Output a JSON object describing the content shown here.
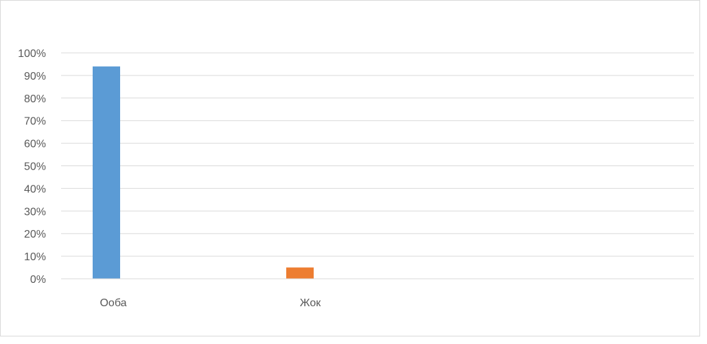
{
  "chart_data": {
    "type": "bar",
    "categories": [
      "Ооба",
      "Жок"
    ],
    "values": [
      94,
      5
    ],
    "colors": [
      "#5b9bd5",
      "#ed7d31"
    ],
    "ylim": [
      0,
      100
    ],
    "yticks": [
      "0%",
      "10%",
      "20%",
      "30%",
      "40%",
      "50%",
      "60%",
      "70%",
      "80%",
      "90%",
      "100%"
    ],
    "grid": true,
    "legend": "none"
  }
}
